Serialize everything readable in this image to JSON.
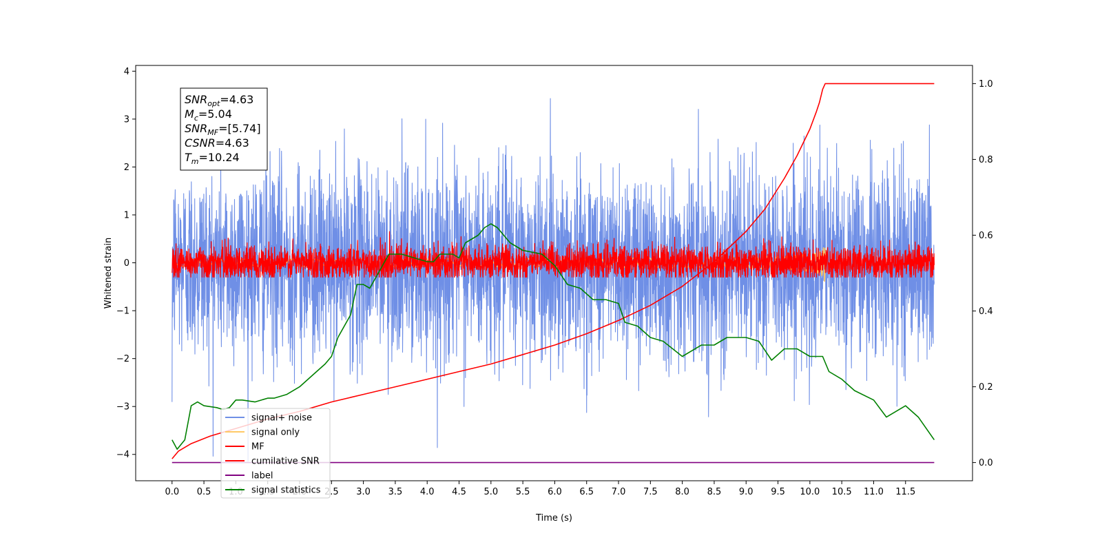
{
  "chart_data": {
    "type": "line",
    "xlabel": "Time (s)",
    "ylabel": "Whitened strain",
    "xlim": [
      -0.57,
      12.55
    ],
    "ylim": [
      -4.55,
      4.12
    ],
    "y2lim": [
      -0.048,
      1.048
    ],
    "x_ticks": [
      "0.0",
      "0.5",
      "1.0",
      "1.5",
      "2.0",
      "2.5",
      "3.0",
      "3.5",
      "4.0",
      "4.5",
      "5.0",
      "5.5",
      "6.0",
      "6.5",
      "7.0",
      "7.5",
      "8.0",
      "8.5",
      "9.0",
      "9.5",
      "10.0",
      "10.5",
      "11.0",
      "11.5"
    ],
    "y_ticks": [
      "4",
      "3",
      "2",
      "1",
      "0",
      "−1",
      "−2",
      "−3",
      "−4"
    ],
    "y2_ticks": [
      "1.0",
      "0.8",
      "0.6",
      "0.4",
      "0.2",
      "0.0"
    ],
    "grid": false,
    "legend_position": "lower-left",
    "annotation": {
      "lines": [
        {
          "main": "SNR",
          "sub": "opt",
          "rest": "=4.63"
        },
        {
          "main": "M",
          "sub": "c",
          "rest": "=5.04"
        },
        {
          "main": "SNR",
          "sub": "MF",
          "rest": "=[5.74]"
        },
        {
          "main": "CSNR",
          "sub": "",
          "rest": "=4.63"
        },
        {
          "main": "T",
          "sub": "m",
          "rest": "=10.24"
        }
      ]
    },
    "series": [
      {
        "name": "signal+ noise",
        "color": "#6f8fe6",
        "axis": "left",
        "kind": "noise",
        "x_range": [
          0.0,
          11.95
        ],
        "amplitude_std": 1.0,
        "y_range": [
          -4.15,
          3.72
        ]
      },
      {
        "name": "signal only",
        "color": "#ffc966",
        "axis": "left",
        "kind": "chirp",
        "x_range": [
          0.0,
          10.24
        ],
        "peak_time": 10.24,
        "peak_amplitude": 0.45
      },
      {
        "name": "MF",
        "color": "#ff0000",
        "axis": "left",
        "kind": "noise",
        "x_range": [
          0.0,
          11.95
        ],
        "amplitude_std": 0.18,
        "y_range": [
          -0.3,
          1.0
        ]
      },
      {
        "name": "cumilative SNR",
        "color": "#ff0000",
        "axis": "right",
        "kind": "line",
        "x": [
          0.0,
          0.1,
          0.3,
          0.6,
          1.0,
          1.5,
          2.0,
          2.5,
          3.0,
          3.5,
          4.0,
          4.5,
          5.0,
          5.5,
          6.0,
          6.5,
          7.0,
          7.5,
          8.0,
          8.5,
          9.0,
          9.3,
          9.6,
          9.8,
          10.0,
          10.1,
          10.15,
          10.2,
          10.24,
          10.5,
          11.0,
          11.5,
          11.95
        ],
        "y": [
          0.01,
          0.03,
          0.05,
          0.07,
          0.09,
          0.115,
          0.135,
          0.16,
          0.18,
          0.2,
          0.22,
          0.24,
          0.26,
          0.285,
          0.31,
          0.34,
          0.375,
          0.415,
          0.465,
          0.53,
          0.61,
          0.67,
          0.75,
          0.81,
          0.88,
          0.925,
          0.95,
          0.985,
          1.0,
          1.0,
          1.0,
          1.0,
          1.0
        ]
      },
      {
        "name": "label",
        "color": "#800080",
        "axis": "right",
        "kind": "line",
        "x": [
          0.0,
          11.95
        ],
        "y": [
          0.0,
          0.0
        ]
      },
      {
        "name": "signal statistics",
        "color": "#008000",
        "axis": "right",
        "kind": "line",
        "x": [
          0.0,
          0.08,
          0.2,
          0.3,
          0.4,
          0.5,
          0.7,
          0.8,
          0.9,
          1.0,
          1.1,
          1.3,
          1.5,
          1.6,
          1.8,
          2.0,
          2.2,
          2.4,
          2.5,
          2.6,
          2.8,
          2.9,
          3.0,
          3.1,
          3.2,
          3.3,
          3.4,
          3.5,
          3.6,
          3.8,
          4.0,
          4.1,
          4.2,
          4.4,
          4.5,
          4.6,
          4.8,
          4.9,
          5.0,
          5.1,
          5.3,
          5.5,
          5.8,
          6.0,
          6.2,
          6.4,
          6.6,
          6.8,
          7.0,
          7.1,
          7.3,
          7.5,
          7.7,
          8.0,
          8.3,
          8.5,
          8.7,
          9.0,
          9.2,
          9.4,
          9.6,
          9.8,
          10.0,
          10.2,
          10.3,
          10.5,
          10.7,
          11.0,
          11.2,
          11.5,
          11.7,
          11.95
        ],
        "y": [
          0.06,
          0.035,
          0.06,
          0.15,
          0.16,
          0.15,
          0.145,
          0.14,
          0.145,
          0.165,
          0.165,
          0.16,
          0.17,
          0.17,
          0.18,
          0.2,
          0.23,
          0.26,
          0.28,
          0.33,
          0.39,
          0.47,
          0.47,
          0.46,
          0.49,
          0.52,
          0.55,
          0.55,
          0.55,
          0.54,
          0.53,
          0.53,
          0.55,
          0.55,
          0.54,
          0.58,
          0.6,
          0.62,
          0.63,
          0.62,
          0.58,
          0.56,
          0.55,
          0.52,
          0.47,
          0.46,
          0.43,
          0.43,
          0.42,
          0.37,
          0.36,
          0.33,
          0.32,
          0.28,
          0.31,
          0.31,
          0.33,
          0.33,
          0.32,
          0.27,
          0.3,
          0.3,
          0.28,
          0.28,
          0.24,
          0.22,
          0.19,
          0.165,
          0.12,
          0.15,
          0.12,
          0.06
        ]
      }
    ]
  }
}
